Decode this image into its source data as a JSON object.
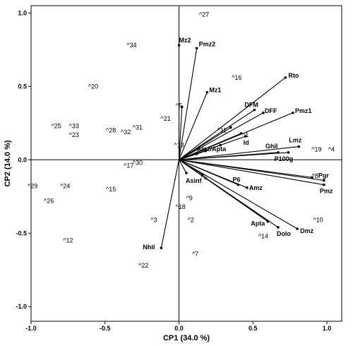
{
  "chart_data": {
    "type": "scatter",
    "xlabel": "CP1 (34.0 %)",
    "ylabel": "CP2 (14.0 %)",
    "xlim": [
      -1.0,
      1.1
    ],
    "ylim": [
      -1.1,
      1.05
    ],
    "xticks": [
      -1.0,
      -0.5,
      0.0,
      0.5,
      1.0
    ],
    "yticks": [
      -1.0,
      -0.5,
      0.0,
      0.5,
      1.0
    ],
    "xtick_labels": [
      "-1.0",
      "-0.5",
      "0.0",
      "0.5",
      "1.0"
    ],
    "ytick_labels": [
      "-1.0",
      "-0.5",
      "0.0",
      "0.5",
      "1.0"
    ],
    "grid": false,
    "variables": [
      {
        "name": "Mz2",
        "x": 0.0,
        "y": 0.78
      },
      {
        "name": "Pmz2",
        "x": 0.12,
        "y": 0.76
      },
      {
        "name": "Mz1",
        "x": 0.19,
        "y": 0.46
      },
      {
        "name": "Rto",
        "x": 0.72,
        "y": 0.56
      },
      {
        "name": "DFM",
        "x": 0.51,
        "y": 0.34
      },
      {
        "name": "DFF",
        "x": 0.57,
        "y": 0.32
      },
      {
        "name": "Pmz1",
        "x": 0.77,
        "y": 0.32
      },
      {
        "name": "Amz/Apta",
        "x": 0.12,
        "y": 0.04
      },
      {
        "name": "Id",
        "x": 0.45,
        "y": 0.16
      },
      {
        "name": "Ghil",
        "x": 0.67,
        "y": 0.05
      },
      {
        "name": "Lmz",
        "x": 0.81,
        "y": 0.09
      },
      {
        "name": "P100g",
        "x": 0.74,
        "y": 0.05
      },
      {
        "name": "Asinf",
        "x": 0.05,
        "y": -0.09
      },
      {
        "name": "P6",
        "x": 0.4,
        "y": -0.17
      },
      {
        "name": "Amz",
        "x": 0.46,
        "y": -0.19
      },
      {
        "name": "Pgr",
        "x": 0.98,
        "y": -0.14
      },
      {
        "name": "Pmz",
        "x": 0.98,
        "y": -0.17
      },
      {
        "name": "Apta",
        "x": 0.6,
        "y": -0.42
      },
      {
        "name": "Dolo",
        "x": 0.67,
        "y": -0.46
      },
      {
        "name": "Dmz",
        "x": 0.8,
        "y": -0.47
      },
      {
        "name": "Nhil",
        "x": -0.12,
        "y": -0.6
      }
    ],
    "extra_vectors": [
      {
        "x": 0.02,
        "y": 0.36
      },
      {
        "x": 0.35,
        "y": 0.22
      },
      {
        "x": 0.42,
        "y": 0.18
      },
      {
        "x": 0.28,
        "y": 0.1
      },
      {
        "x": 0.18,
        "y": 0.06
      },
      {
        "x": 0.16,
        "y": -0.1
      },
      {
        "x": 0.9,
        "y": -0.12
      }
    ],
    "observations": [
      {
        "label": "^1",
        "x": 0.45,
        "y": 0.17
      },
      {
        "label": "^2",
        "x": 0.08,
        "y": -0.41
      },
      {
        "label": "^3",
        "x": -0.17,
        "y": -0.41
      },
      {
        "label": "^4",
        "x": 1.03,
        "y": 0.07
      },
      {
        "label": "^5",
        "x": 0.0,
        "y": 0.37
      },
      {
        "label": "^6",
        "x": 0.17,
        "y": -0.12
      },
      {
        "label": "^7",
        "x": 0.11,
        "y": -0.64
      },
      {
        "label": "^8",
        "x": 0.92,
        "y": -0.11
      },
      {
        "label": "^9",
        "x": 0.07,
        "y": -0.26
      },
      {
        "label": "^10",
        "x": 0.94,
        "y": -0.41
      },
      {
        "label": "^11",
        "x": 0.29,
        "y": 0.2
      },
      {
        "label": "^12",
        "x": -0.75,
        "y": -0.55
      },
      {
        "label": "^13",
        "x": 0.0,
        "y": 0.1
      },
      {
        "label": "^14",
        "x": 0.57,
        "y": -0.52
      },
      {
        "label": "^15",
        "x": -0.46,
        "y": -0.2
      },
      {
        "label": "^16",
        "x": 0.39,
        "y": 0.56
      },
      {
        "label": "^17",
        "x": -0.34,
        "y": -0.04
      },
      {
        "label": "^18",
        "x": 0.01,
        "y": -0.32
      },
      {
        "label": "^19",
        "x": 0.93,
        "y": 0.07
      },
      {
        "label": "^20",
        "x": -0.58,
        "y": 0.5
      },
      {
        "label": "^21",
        "x": -0.09,
        "y": 0.28
      },
      {
        "label": "^22",
        "x": -0.24,
        "y": -0.72
      },
      {
        "label": "^23",
        "x": -0.71,
        "y": 0.17
      },
      {
        "label": "^24",
        "x": -0.77,
        "y": -0.18
      },
      {
        "label": "^25",
        "x": -0.83,
        "y": 0.23
      },
      {
        "label": "^26",
        "x": -0.88,
        "y": -0.28
      },
      {
        "label": "^27",
        "x": 0.17,
        "y": 0.99
      },
      {
        "label": "^28",
        "x": -0.46,
        "y": 0.2
      },
      {
        "label": "^29",
        "x": -0.99,
        "y": -0.18
      },
      {
        "label": "^30",
        "x": -0.28,
        "y": -0.02
      },
      {
        "label": "^31",
        "x": -0.28,
        "y": 0.22
      },
      {
        "label": "^32",
        "x": -0.36,
        "y": 0.19
      },
      {
        "label": "^33",
        "x": -0.71,
        "y": 0.23
      },
      {
        "label": "^34",
        "x": -0.32,
        "y": 0.78
      }
    ]
  }
}
